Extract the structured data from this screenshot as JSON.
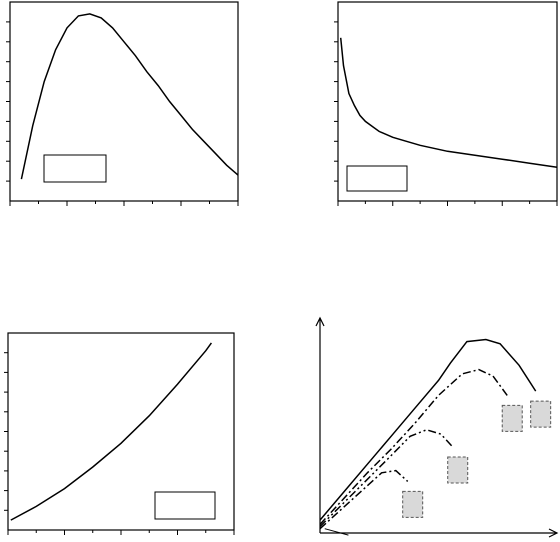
{
  "chart_data": [
    {
      "type": "line",
      "grid": false,
      "xlim": [
        0,
        8
      ],
      "ylim": [
        0,
        10
      ],
      "x_ticks": [
        0,
        2,
        4,
        6,
        8
      ],
      "x_minor_ticks": [
        1,
        3,
        5,
        7
      ],
      "y_ticks": [
        1,
        2,
        3,
        4,
        5,
        6,
        7,
        8,
        9
      ],
      "legend": {
        "entries": [],
        "placement": "bottom-left"
      },
      "series": [
        {
          "x": [
            0.4,
            0.8,
            1.2,
            1.6,
            2.0,
            2.4,
            2.8,
            3.2,
            3.6,
            4.0,
            4.4,
            4.8,
            5.2,
            5.6,
            6.0,
            6.4,
            6.8,
            7.2,
            7.6,
            8.0
          ],
          "y": [
            1.1,
            3.8,
            6.0,
            7.6,
            8.7,
            9.3,
            9.4,
            9.2,
            8.7,
            8.0,
            7.3,
            6.5,
            5.8,
            5.0,
            4.3,
            3.6,
            3.0,
            2.4,
            1.8,
            1.3
          ]
        }
      ]
    },
    {
      "type": "line",
      "grid": false,
      "xlim": [
        0,
        8
      ],
      "ylim": [
        0,
        10
      ],
      "x_ticks": [
        0,
        2,
        4,
        6,
        8
      ],
      "x_minor_ticks": [
        1,
        3,
        5,
        7
      ],
      "y_ticks": [
        1,
        2,
        3,
        4,
        5,
        6,
        7,
        8,
        9
      ],
      "legend": {
        "entries": [],
        "placement": "bottom-left"
      },
      "series": [
        {
          "x": [
            0.1,
            0.2,
            0.4,
            0.6,
            0.8,
            1.0,
            1.5,
            2.0,
            2.5,
            3.0,
            4.0,
            5.0,
            6.0,
            7.0,
            8.0
          ],
          "y": [
            8.2,
            6.8,
            5.4,
            4.8,
            4.3,
            4.0,
            3.5,
            3.2,
            3.0,
            2.8,
            2.5,
            2.3,
            2.1,
            1.9,
            1.7
          ]
        }
      ]
    },
    {
      "type": "line",
      "grid": false,
      "xlim": [
        0,
        8
      ],
      "ylim": [
        0,
        10
      ],
      "x_ticks": [
        0,
        2,
        4,
        6,
        8
      ],
      "x_minor_ticks": [
        1,
        3,
        5,
        7
      ],
      "y_ticks": [
        1,
        2,
        3,
        4,
        5,
        6,
        7,
        8,
        9
      ],
      "legend": {
        "entries": [],
        "placement": "bottom-right"
      },
      "series": [
        {
          "x": [
            0.1,
            1,
            2,
            3,
            4,
            5,
            6,
            7,
            7.2
          ],
          "y": [
            0.5,
            1.2,
            2.1,
            3.2,
            4.4,
            5.8,
            7.4,
            9.1,
            9.5
          ]
        }
      ]
    },
    {
      "type": "line",
      "grid": false,
      "axes_style": "arrows",
      "xlim": [
        0,
        10
      ],
      "ylim": [
        0,
        10
      ],
      "series": [
        {
          "style": "solid",
          "x": [
            0,
            1,
            2,
            3,
            4,
            5,
            5.5,
            6.2,
            7.0,
            7.6,
            8.4,
            9.1
          ],
          "y": [
            0.6,
            1.9,
            3.2,
            4.5,
            5.8,
            7.1,
            7.9,
            8.9,
            9.0,
            8.8,
            7.8,
            6.6
          ]
        },
        {
          "style": "dash-dot",
          "x": [
            0,
            1,
            2,
            3,
            4,
            5,
            6,
            6.7,
            7.3,
            7.9
          ],
          "y": [
            0.4,
            1.6,
            2.8,
            3.9,
            5.1,
            6.4,
            7.4,
            7.6,
            7.3,
            6.4
          ]
        },
        {
          "style": "dash-dot-dot",
          "x": [
            0,
            1,
            2,
            3,
            3.8,
            4.5,
            5.1,
            5.6
          ],
          "y": [
            0.3,
            1.4,
            2.5,
            3.6,
            4.5,
            4.8,
            4.6,
            4.0
          ]
        },
        {
          "style": "dash-dot",
          "x": [
            0,
            1,
            2,
            2.6,
            3.2,
            3.7
          ],
          "y": [
            0.2,
            1.2,
            2.2,
            2.8,
            2.9,
            2.4
          ]
        }
      ],
      "marker_fill": "#d9d9d9"
    }
  ]
}
